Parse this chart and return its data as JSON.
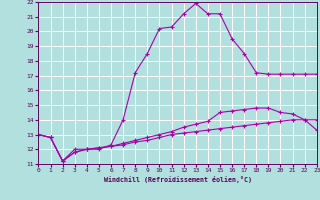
{
  "xlabel": "Windchill (Refroidissement éolien,°C)",
  "bg_color": "#b2e0df",
  "grid_color": "#ffffff",
  "line_color": "#aa00aa",
  "ylim": [
    11,
    22
  ],
  "xlim": [
    0,
    23
  ],
  "yticks": [
    11,
    12,
    13,
    14,
    15,
    16,
    17,
    18,
    19,
    20,
    21,
    22
  ],
  "xticks": [
    0,
    1,
    2,
    3,
    4,
    5,
    6,
    7,
    8,
    9,
    10,
    11,
    12,
    13,
    14,
    15,
    16,
    17,
    18,
    19,
    20,
    21,
    22,
    23
  ],
  "line1_x": [
    0,
    1,
    2,
    3,
    4,
    5,
    6,
    7,
    8,
    9,
    10,
    11,
    12,
    13,
    14,
    15,
    16,
    17,
    18,
    19,
    20,
    21,
    22,
    23
  ],
  "line1_y": [
    13.0,
    12.8,
    11.2,
    12.0,
    12.0,
    12.0,
    12.3,
    14.0,
    17.2,
    18.5,
    20.2,
    20.3,
    21.2,
    21.9,
    21.2,
    21.2,
    19.5,
    18.5,
    17.2,
    17.1,
    17.1,
    17.1,
    17.1,
    17.1
  ],
  "line2_x": [
    0,
    1,
    2,
    3,
    4,
    5,
    6,
    7,
    8,
    9,
    10,
    11,
    12,
    13,
    14,
    15,
    16,
    17,
    18,
    19,
    20,
    21,
    22,
    23
  ],
  "line2_y": [
    13.0,
    12.8,
    11.2,
    11.8,
    12.0,
    12.1,
    12.2,
    12.4,
    12.6,
    12.8,
    13.0,
    13.2,
    13.5,
    13.7,
    13.9,
    14.5,
    14.6,
    14.7,
    14.8,
    14.8,
    14.5,
    14.4,
    14.0,
    13.3
  ],
  "line3_x": [
    0,
    1,
    2,
    3,
    4,
    5,
    6,
    7,
    8,
    9,
    10,
    11,
    12,
    13,
    14,
    15,
    16,
    17,
    18,
    19,
    20,
    21,
    22,
    23
  ],
  "line3_y": [
    13.0,
    12.8,
    11.2,
    11.8,
    12.0,
    12.1,
    12.2,
    12.3,
    12.5,
    12.6,
    12.8,
    13.0,
    13.1,
    13.2,
    13.3,
    13.4,
    13.5,
    13.6,
    13.7,
    13.8,
    13.9,
    14.0,
    14.0,
    14.0
  ]
}
